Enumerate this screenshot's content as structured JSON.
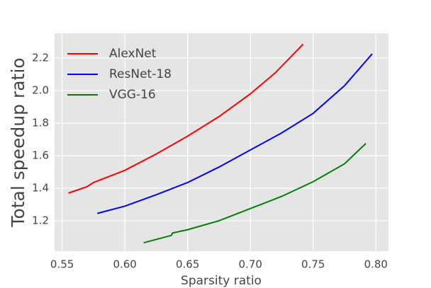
{
  "chart_data": {
    "type": "line",
    "xlabel": "Sparsity ratio",
    "ylabel": "Total speedup ratio",
    "xlim": [
      0.544,
      0.81
    ],
    "ylim": [
      1.013,
      2.352
    ],
    "xticks": [
      {
        "value": 0.55,
        "label": "0.55"
      },
      {
        "value": 0.6,
        "label": "0.60"
      },
      {
        "value": 0.65,
        "label": "0.65"
      },
      {
        "value": 0.7,
        "label": "0.70"
      },
      {
        "value": 0.75,
        "label": "0.75"
      },
      {
        "value": 0.8,
        "label": "0.80"
      }
    ],
    "yticks": [
      1.2,
      1.4,
      1.6,
      1.8,
      {
        "value": 2.0,
        "label": "2.0"
      },
      2.2
    ],
    "grid": true,
    "legend": "upper-left",
    "series": [
      {
        "name": "AlexNet",
        "color": "#ff0000",
        "x": [
          0.555,
          0.57,
          0.575,
          0.6,
          0.625,
          0.65,
          0.675,
          0.7,
          0.72,
          0.742
        ],
        "values": [
          1.37,
          1.41,
          1.435,
          1.51,
          1.61,
          1.72,
          1.84,
          1.98,
          2.11,
          2.285
        ]
      },
      {
        "name": "ResNet-18",
        "color": "#0000ff",
        "x": [
          0.578,
          0.6,
          0.625,
          0.65,
          0.675,
          0.7,
          0.725,
          0.75,
          0.775,
          0.797
        ],
        "values": [
          1.245,
          1.29,
          1.36,
          1.435,
          1.53,
          1.635,
          1.74,
          1.86,
          2.03,
          2.225
        ]
      },
      {
        "name": "VGG-16",
        "color": "#008000",
        "x": [
          0.615,
          0.637,
          0.638,
          0.65,
          0.675,
          0.7,
          0.725,
          0.75,
          0.775,
          0.792
        ],
        "values": [
          1.065,
          1.11,
          1.125,
          1.145,
          1.2,
          1.275,
          1.35,
          1.44,
          1.55,
          1.675
        ]
      }
    ]
  }
}
